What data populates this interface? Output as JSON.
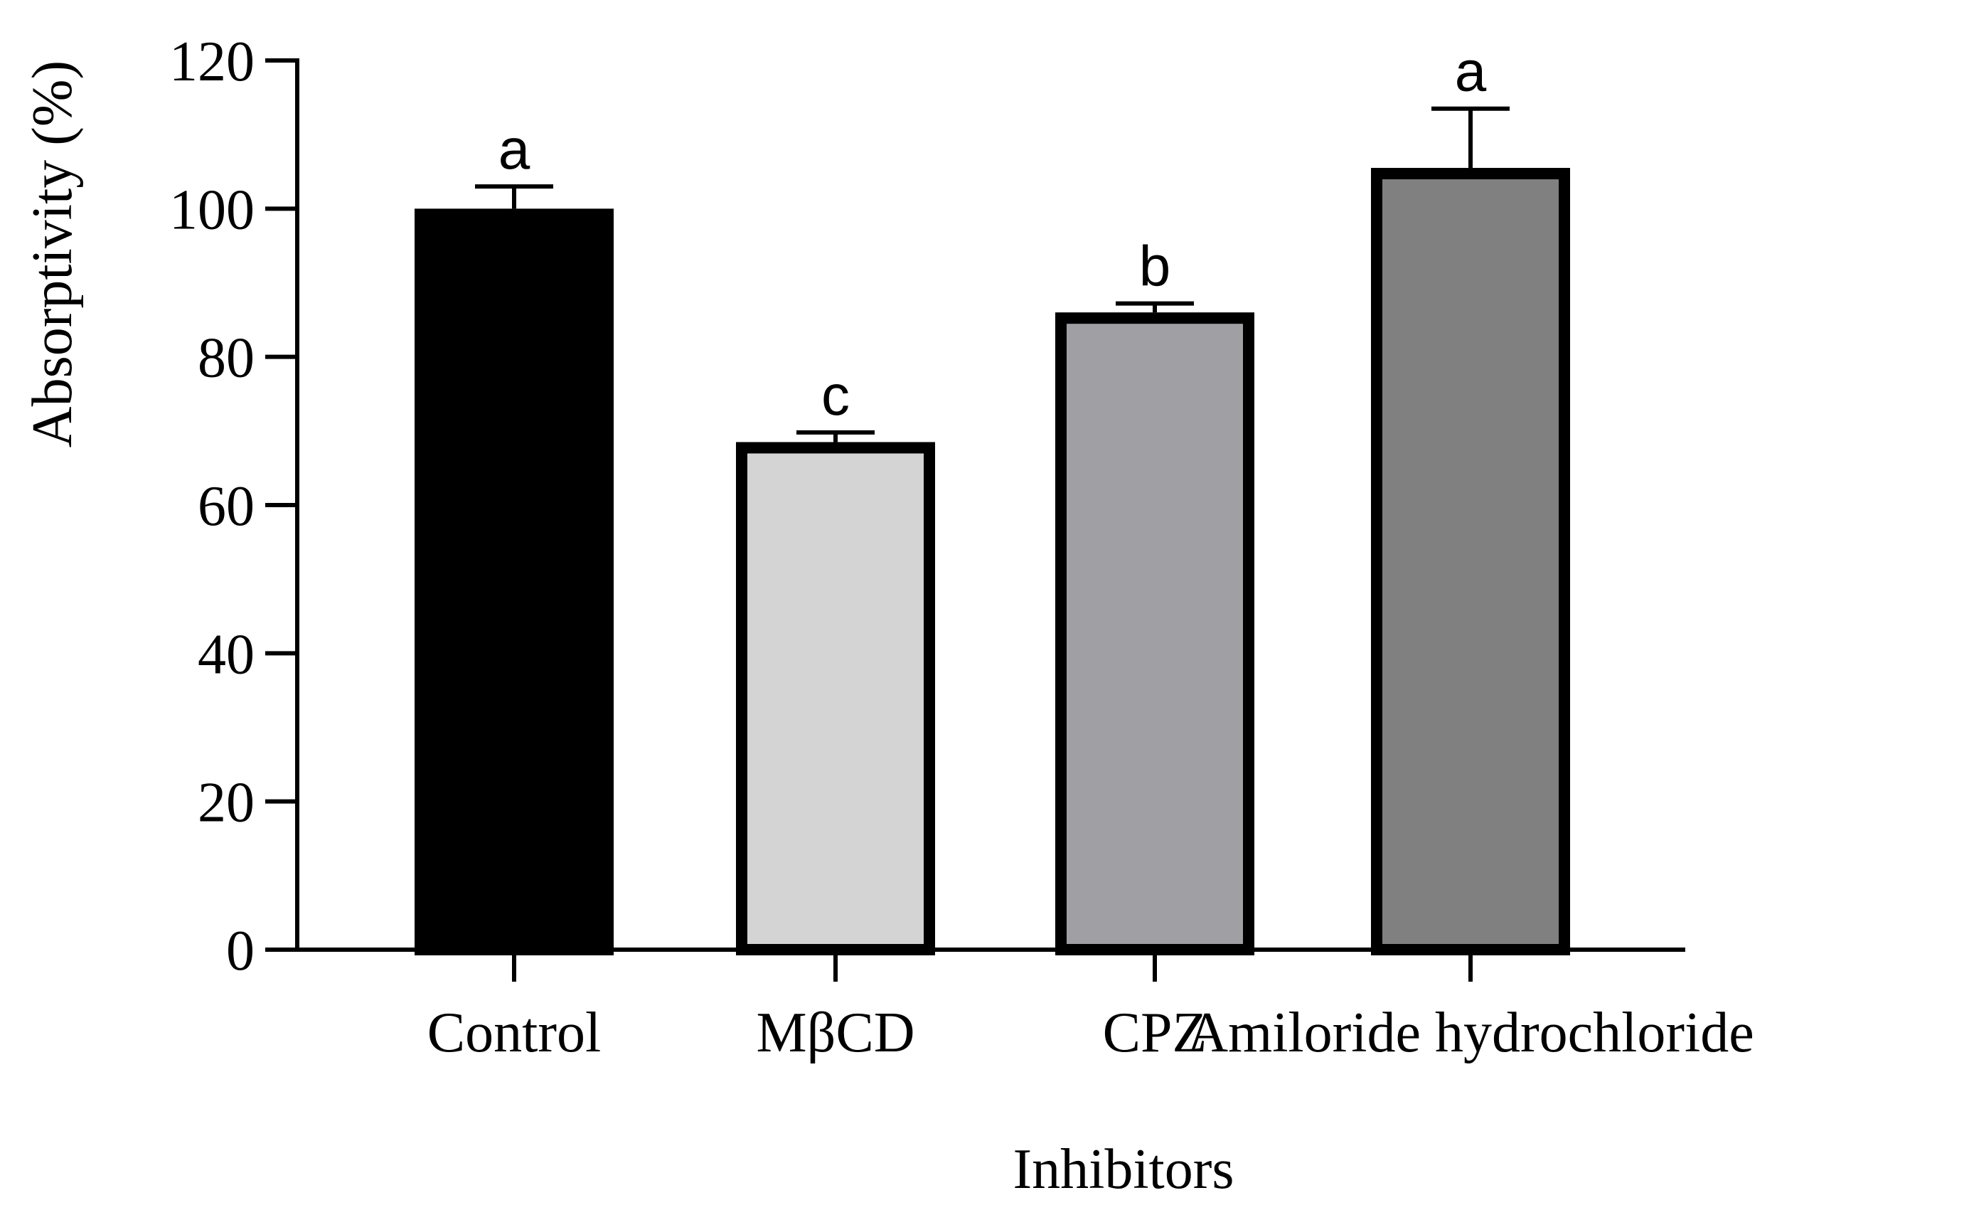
{
  "chart_data": {
    "type": "bar",
    "title": "",
    "xlabel": "Inhibitors",
    "ylabel": "Absorptivity (%)",
    "ylim": [
      0,
      120
    ],
    "yticks": [
      0,
      20,
      40,
      60,
      80,
      100,
      120
    ],
    "categories": [
      "Control",
      "MβCD",
      "CPZ",
      "Amiloride hydrochloride"
    ],
    "values": [
      100,
      68.5,
      86,
      105.5
    ],
    "errors": [
      3,
      1.3,
      1.2,
      8
    ],
    "significance": [
      "a",
      "c",
      "b",
      "a"
    ],
    "colors": [
      "#000000",
      "#d4d4d4",
      "#a0a0a4",
      "#808080"
    ],
    "grid": false
  }
}
